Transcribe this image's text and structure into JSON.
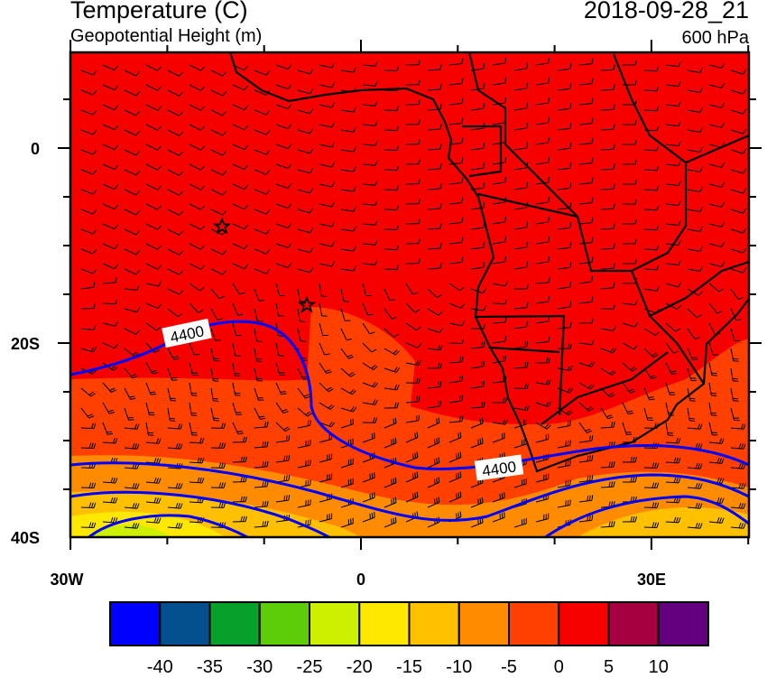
{
  "header": {
    "title": "Temperature (C)",
    "subtitle": "Geopotential Height (m)",
    "datetime": "2018-09-28_21",
    "level": "600 hPa"
  },
  "map": {
    "projection": "mercator",
    "lon_range": [
      -30,
      40
    ],
    "lat_range": [
      -40,
      10
    ],
    "y_ticks": [
      {
        "lat": 0,
        "label": "0"
      },
      {
        "lat": -20,
        "label": "20S"
      },
      {
        "lat": -40,
        "label": "40S"
      }
    ],
    "x_ticks": [
      {
        "lon": -30,
        "label": "30W"
      },
      {
        "lon": 0,
        "label": "0"
      },
      {
        "lon": 30,
        "label": "30E"
      }
    ],
    "contour_labels": [
      "4400",
      "4400"
    ],
    "contour_color": "#0000ff",
    "markers": [
      "star-icon",
      "star-icon"
    ]
  },
  "colorbar": {
    "colors": [
      "#0000ff",
      "#04508f",
      "#06a02a",
      "#5ccd08",
      "#ccf000",
      "#ffe800",
      "#ffc000",
      "#ff8c00",
      "#ff4000",
      "#f70000",
      "#a60040",
      "#640080"
    ],
    "labels": [
      "-40",
      "-35",
      "-30",
      "-25",
      "-20",
      "-15",
      "-10",
      "-5",
      "0",
      "5",
      "10"
    ]
  }
}
